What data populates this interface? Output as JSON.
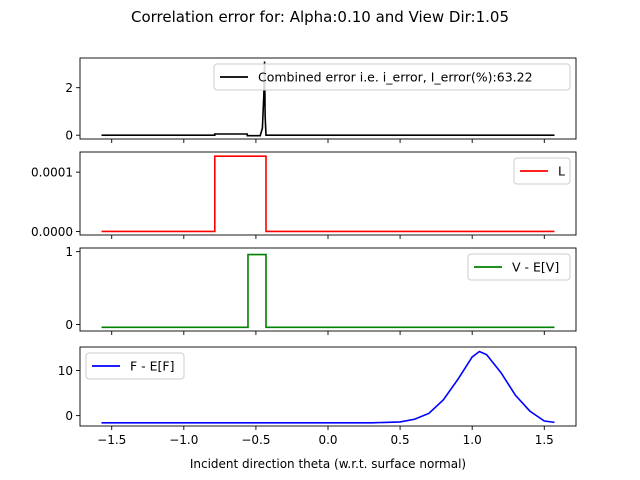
{
  "figure": {
    "suptitle": "Correlation error for: Alpha:0.10 and View Dir:1.05",
    "xlabel": "Incident direction theta (w.r.t. surface normal)"
  },
  "chart_data": [
    {
      "type": "line",
      "title": "",
      "xlabel": "",
      "ylabel": "",
      "xlim": [
        -1.72,
        1.72
      ],
      "ylim": [
        -0.16,
        3.25
      ],
      "yticks": [
        0,
        2
      ],
      "ytick_labels": [
        "0",
        "2"
      ],
      "legend_placement": "top-right",
      "grid": false,
      "series": [
        {
          "name": "Combined error i.e. i_error, I_error(%):63.22",
          "color": "#000000",
          "points": [
            [
              -1.5708,
              0.0
            ],
            [
              -0.785,
              0.0
            ],
            [
              -0.785,
              0.05
            ],
            [
              -0.56,
              0.05
            ],
            [
              -0.56,
              -0.02
            ],
            [
              -0.47,
              -0.02
            ],
            [
              -0.455,
              0.3
            ],
            [
              -0.445,
              1.7
            ],
            [
              -0.44,
              3.1
            ],
            [
              -0.436,
              0.8
            ],
            [
              -0.43,
              0.0
            ],
            [
              1.5708,
              0.0
            ]
          ]
        }
      ]
    },
    {
      "type": "line",
      "title": "",
      "xlabel": "",
      "ylabel": "",
      "xlim": [
        -1.72,
        1.72
      ],
      "ylim": [
        -6e-06,
        0.000134
      ],
      "yticks": [
        0,
        0.0001
      ],
      "ytick_labels": [
        "0.0000",
        "0.0001"
      ],
      "legend_placement": "top-right",
      "grid": false,
      "series": [
        {
          "name": "L",
          "color": "#ff0000",
          "points": [
            [
              -1.5708,
              0.0
            ],
            [
              -0.785,
              0.0
            ],
            [
              -0.785,
              0.000127
            ],
            [
              -0.43,
              0.000127
            ],
            [
              -0.43,
              0.0
            ],
            [
              1.5708,
              0.0
            ]
          ]
        }
      ]
    },
    {
      "type": "line",
      "title": "",
      "xlabel": "",
      "ylabel": "",
      "xlim": [
        -1.72,
        1.72
      ],
      "ylim": [
        -0.09,
        1.05
      ],
      "yticks": [
        0,
        1
      ],
      "ytick_labels": [
        "0",
        "1"
      ],
      "legend_placement": "top-right",
      "grid": false,
      "series": [
        {
          "name": "V - E[V]",
          "color": "#008000",
          "points": [
            [
              -1.5708,
              -0.04
            ],
            [
              -0.555,
              -0.04
            ],
            [
              -0.555,
              0.96
            ],
            [
              -0.43,
              0.96
            ],
            [
              -0.43,
              -0.04
            ],
            [
              1.5708,
              -0.04
            ]
          ]
        }
      ]
    },
    {
      "type": "line",
      "title": "",
      "xlabel": "Incident direction theta (w.r.t. surface normal)",
      "ylabel": "",
      "xlim": [
        -1.72,
        1.72
      ],
      "ylim": [
        -2.3,
        15.2
      ],
      "xticks": [
        -1.5,
        -1.0,
        -0.5,
        0.0,
        0.5,
        1.0,
        1.5
      ],
      "xtick_labels": [
        "−1.5",
        "−1.0",
        "−0.5",
        "0.0",
        "0.5",
        "1.0",
        "1.5"
      ],
      "yticks": [
        0,
        10
      ],
      "ytick_labels": [
        "0",
        "10"
      ],
      "legend_placement": "top-left",
      "grid": false,
      "series": [
        {
          "name": "F - E[F]",
          "color": "#0000ff",
          "points": [
            [
              -1.5708,
              -1.6
            ],
            [
              0.3,
              -1.6
            ],
            [
              0.5,
              -1.4
            ],
            [
              0.6,
              -0.8
            ],
            [
              0.7,
              0.5
            ],
            [
              0.8,
              3.5
            ],
            [
              0.9,
              8.0
            ],
            [
              1.0,
              13.0
            ],
            [
              1.05,
              14.2
            ],
            [
              1.1,
              13.5
            ],
            [
              1.2,
              9.5
            ],
            [
              1.3,
              4.5
            ],
            [
              1.4,
              1.0
            ],
            [
              1.5,
              -1.2
            ],
            [
              1.5708,
              -1.5
            ]
          ]
        }
      ]
    }
  ]
}
